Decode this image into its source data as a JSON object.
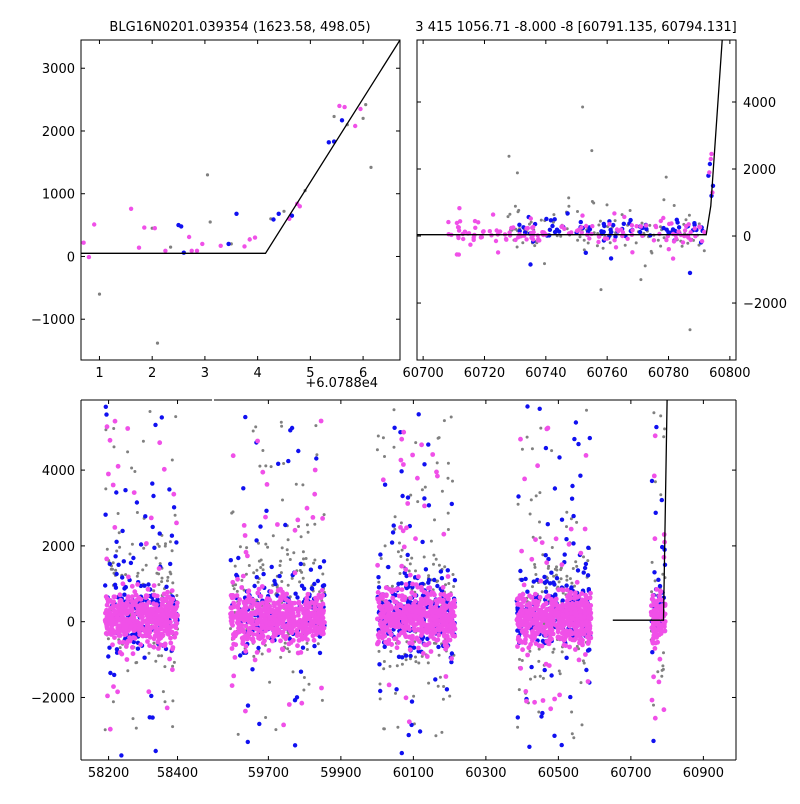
{
  "colors": {
    "gray": "#808080",
    "blue": "#1010f0",
    "magenta": "#f050e8",
    "model": "#000000"
  },
  "chart_data": [
    {
      "id": "zoom",
      "type": "scatter",
      "title": "BLG16N0201.039354 (1623.58, 498.05)",
      "xlim": [
        0.65,
        6.7
      ],
      "ylim": [
        -1650,
        3450
      ],
      "xticks": [
        1,
        2,
        3,
        4,
        5,
        6
      ],
      "yticks": [
        -1000,
        0,
        1000,
        2000,
        3000
      ],
      "ytick_labels": [
        "−1000",
        "0",
        "1000",
        "2000",
        "3000"
      ],
      "offset_label": "+6.0788e4",
      "model_line": {
        "x": [
          0.65,
          4.15,
          6.7
        ],
        "y": [
          50,
          50,
          3450
        ]
      },
      "series": [
        {
          "name": "gray",
          "points": [
            [
              1.0,
              -600
            ],
            [
              2.1,
              -1380
            ],
            [
              2.0,
              450
            ],
            [
              2.35,
              150
            ],
            [
              2.55,
              480
            ],
            [
              3.05,
              1300
            ],
            [
              3.1,
              550
            ],
            [
              3.5,
              200
            ],
            [
              4.25,
              600
            ],
            [
              4.5,
              720
            ],
            [
              4.9,
              1050
            ],
            [
              5.45,
              2230
            ],
            [
              5.7,
              2100
            ],
            [
              6.05,
              2420
            ],
            [
              6.15,
              1420
            ],
            [
              6.0,
              2200
            ],
            [
              3.85,
              280
            ]
          ]
        },
        {
          "name": "blue",
          "points": [
            [
              2.5,
              500
            ],
            [
              2.55,
              480
            ],
            [
              2.6,
              60
            ],
            [
              3.45,
              200
            ],
            [
              3.6,
              680
            ],
            [
              4.3,
              590
            ],
            [
              4.4,
              680
            ],
            [
              4.65,
              650
            ],
            [
              5.35,
              1820
            ],
            [
              5.45,
              1830
            ],
            [
              5.6,
              2170
            ]
          ]
        },
        {
          "name": "magenta",
          "points": [
            [
              0.7,
              220
            ],
            [
              0.8,
              -10
            ],
            [
              0.9,
              510
            ],
            [
              1.6,
              760
            ],
            [
              1.75,
              140
            ],
            [
              1.85,
              460
            ],
            [
              2.05,
              450
            ],
            [
              2.25,
              90
            ],
            [
              2.7,
              310
            ],
            [
              2.75,
              90
            ],
            [
              2.85,
              90
            ],
            [
              2.95,
              200
            ],
            [
              3.3,
              170
            ],
            [
              3.75,
              160
            ],
            [
              3.85,
              270
            ],
            [
              3.95,
              300
            ],
            [
              4.6,
              600
            ],
            [
              4.75,
              840
            ],
            [
              4.8,
              800
            ],
            [
              5.55,
              2400
            ],
            [
              5.65,
              2380
            ],
            [
              5.85,
              2080
            ],
            [
              5.95,
              2350
            ]
          ]
        }
      ]
    },
    {
      "id": "season",
      "type": "scatter",
      "title": "3 415 1056.71 -8.000 -8 [60791.135, 60794.131]",
      "xlim": [
        60698,
        60802
      ],
      "ylim": [
        -3700,
        5850
      ],
      "xticks": [
        60700,
        60720,
        60740,
        60760,
        60780,
        60800
      ],
      "yticks": [
        -2000,
        0,
        2000,
        4000
      ],
      "ytick_labels": [
        "−2000",
        "0",
        "2000",
        "4000"
      ],
      "y_axis_side": "right",
      "model_line": {
        "x": [
          60698,
          60792.3,
          60793.8,
          60797.5
        ],
        "y": [
          40,
          40,
          900,
          5850
        ]
      }
    },
    {
      "id": "full",
      "type": "scatter",
      "title": "",
      "xlim": [
        58120,
        60990
      ],
      "ylim": [
        -3650,
        5850
      ],
      "xticks": [
        58200,
        58400,
        59700,
        59900,
        60100,
        60300,
        60500,
        60700,
        60900
      ],
      "yticks": [
        -2000,
        0,
        2000,
        4000
      ],
      "ytick_labels": [
        "−2000",
        "0",
        "2000",
        "4000"
      ],
      "model_line": {
        "x": [
          60650,
          60790,
          60800
        ],
        "y": [
          40,
          40,
          5850
        ]
      }
    }
  ]
}
